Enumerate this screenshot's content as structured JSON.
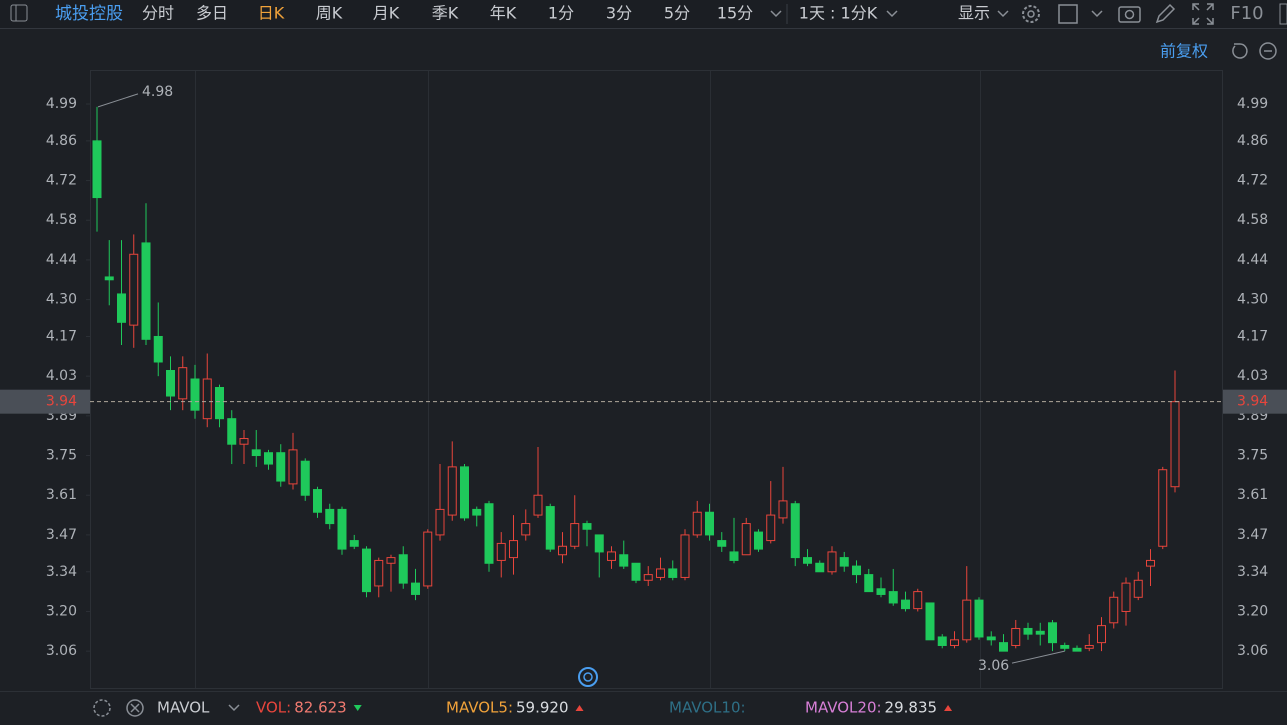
{
  "toolbar": {
    "stock": "城投控股",
    "periods": [
      "分时",
      "多日",
      "日K",
      "周K",
      "月K",
      "季K",
      "年K",
      "1分",
      "3分",
      "5分",
      "15分"
    ],
    "selected_period_index": 2,
    "interval": "1天 : 1分K",
    "display": "显示",
    "f10": "F10",
    "adjust": "前复权"
  },
  "chart_data": {
    "type": "candlestick",
    "open": [
      4.86,
      4.38,
      4.32,
      4.21,
      4.5,
      4.17,
      4.05,
      3.95,
      4.02,
      3.88,
      3.99,
      3.88,
      3.79,
      3.77,
      3.76,
      3.76,
      3.65,
      3.73,
      3.63,
      3.56,
      3.56,
      3.45,
      3.42,
      3.29,
      3.37,
      3.4,
      3.3,
      3.29,
      3.47,
      3.54,
      3.71,
      3.56,
      3.58,
      3.38,
      3.39,
      3.47,
      3.54,
      3.57,
      3.4,
      3.43,
      3.51,
      3.47,
      3.38,
      3.4,
      3.37,
      3.31,
      3.32,
      3.35,
      3.32,
      3.47,
      3.55,
      3.45,
      3.41,
      3.4,
      3.48,
      3.45,
      3.53,
      3.58,
      3.39,
      3.37,
      3.34,
      3.39,
      3.36,
      3.33,
      3.28,
      3.27,
      3.24,
      3.21,
      3.23,
      3.11,
      3.08,
      3.1,
      3.24,
      3.11,
      3.09,
      3.08,
      3.14,
      3.13,
      3.16,
      3.08,
      3.07,
      3.07,
      3.09,
      3.16,
      3.2,
      3.25,
      3.36,
      3.43,
      3.64
    ],
    "high": [
      4.98,
      4.51,
      4.51,
      4.53,
      4.64,
      4.29,
      4.1,
      4.1,
      4.07,
      4.11,
      4.0,
      3.91,
      3.84,
      3.84,
      3.77,
      3.79,
      3.83,
      3.74,
      3.64,
      3.58,
      3.57,
      3.47,
      3.43,
      3.39,
      3.4,
      3.43,
      3.35,
      3.49,
      3.72,
      3.8,
      3.72,
      3.57,
      3.59,
      3.48,
      3.54,
      3.56,
      3.78,
      3.58,
      3.48,
      3.61,
      3.52,
      3.47,
      3.43,
      3.45,
      3.37,
      3.36,
      3.39,
      3.38,
      3.49,
      3.59,
      3.58,
      3.48,
      3.53,
      3.53,
      3.49,
      3.66,
      3.71,
      3.59,
      3.42,
      3.38,
      3.43,
      3.41,
      3.38,
      3.35,
      3.32,
      3.35,
      3.27,
      3.28,
      3.23,
      3.12,
      3.13,
      3.36,
      3.25,
      3.13,
      3.12,
      3.17,
      3.16,
      3.16,
      3.17,
      3.09,
      3.08,
      3.12,
      3.18,
      3.27,
      3.32,
      3.34,
      3.42,
      3.71,
      4.05
    ],
    "low": [
      4.54,
      4.28,
      4.14,
      4.13,
      4.14,
      4.03,
      3.91,
      3.91,
      3.88,
      3.85,
      3.85,
      3.72,
      3.72,
      3.71,
      3.7,
      3.64,
      3.63,
      3.59,
      3.53,
      3.49,
      3.4,
      3.42,
      3.25,
      3.25,
      3.27,
      3.28,
      3.24,
      3.28,
      3.45,
      3.52,
      3.52,
      3.5,
      3.34,
      3.32,
      3.33,
      3.45,
      3.53,
      3.41,
      3.37,
      3.42,
      3.43,
      3.32,
      3.35,
      3.35,
      3.3,
      3.29,
      3.31,
      3.31,
      3.31,
      3.46,
      3.45,
      3.41,
      3.37,
      3.4,
      3.41,
      3.44,
      3.51,
      3.36,
      3.36,
      3.34,
      3.33,
      3.34,
      3.3,
      3.27,
      3.25,
      3.22,
      3.2,
      3.2,
      3.1,
      3.07,
      3.07,
      3.09,
      3.1,
      3.08,
      3.06,
      3.07,
      3.1,
      3.08,
      3.06,
      3.06,
      3.06,
      3.06,
      3.06,
      3.14,
      3.15,
      3.24,
      3.29,
      3.42,
      3.62
    ],
    "close": [
      4.66,
      4.37,
      4.22,
      4.46,
      4.16,
      4.08,
      3.96,
      4.06,
      3.91,
      4.02,
      3.88,
      3.79,
      3.81,
      3.75,
      3.72,
      3.66,
      3.77,
      3.61,
      3.55,
      3.51,
      3.42,
      3.43,
      3.27,
      3.38,
      3.39,
      3.3,
      3.26,
      3.48,
      3.56,
      3.71,
      3.53,
      3.54,
      3.37,
      3.44,
      3.45,
      3.51,
      3.61,
      3.42,
      3.43,
      3.51,
      3.49,
      3.41,
      3.41,
      3.36,
      3.31,
      3.33,
      3.35,
      3.32,
      3.47,
      3.55,
      3.47,
      3.43,
      3.38,
      3.51,
      3.42,
      3.54,
      3.59,
      3.39,
      3.37,
      3.34,
      3.41,
      3.36,
      3.33,
      3.27,
      3.26,
      3.23,
      3.21,
      3.27,
      3.1,
      3.08,
      3.1,
      3.24,
      3.11,
      3.1,
      3.06,
      3.14,
      3.12,
      3.12,
      3.09,
      3.07,
      3.06,
      3.08,
      3.15,
      3.25,
      3.3,
      3.31,
      3.38,
      3.7,
      3.94
    ],
    "up_color": "#e8453c",
    "down_color": "#1fc95b",
    "ylim": [
      2.93,
      5.11
    ],
    "yticks": [
      4.99,
      4.86,
      4.72,
      4.58,
      4.44,
      {
        "value": 4.3,
        "label": "4.30"
      },
      4.17,
      4.03,
      3.89,
      3.75,
      3.61,
      3.47,
      3.34,
      {
        "value": 3.2,
        "label": "3.20"
      },
      3.06
    ],
    "last_price": 3.94,
    "high_annotation": 4.98,
    "low_annotation": 3.06,
    "indicator": {
      "name": "MAVOL",
      "items": [
        {
          "name": "VOL:",
          "value": 82.623,
          "direction": "down",
          "color": "#e8453c"
        },
        {
          "name": "MAVOL5:",
          "value": {
            "value": 59.92,
            "label": "59.920"
          },
          "direction": "up",
          "color": "#f0a23a"
        },
        {
          "name": "MAVOL10:",
          "color": "#2e6f86"
        },
        {
          "name": "MAVOL20:",
          "value": 29.835,
          "direction": "up",
          "color": "#d77fd6"
        }
      ]
    }
  }
}
